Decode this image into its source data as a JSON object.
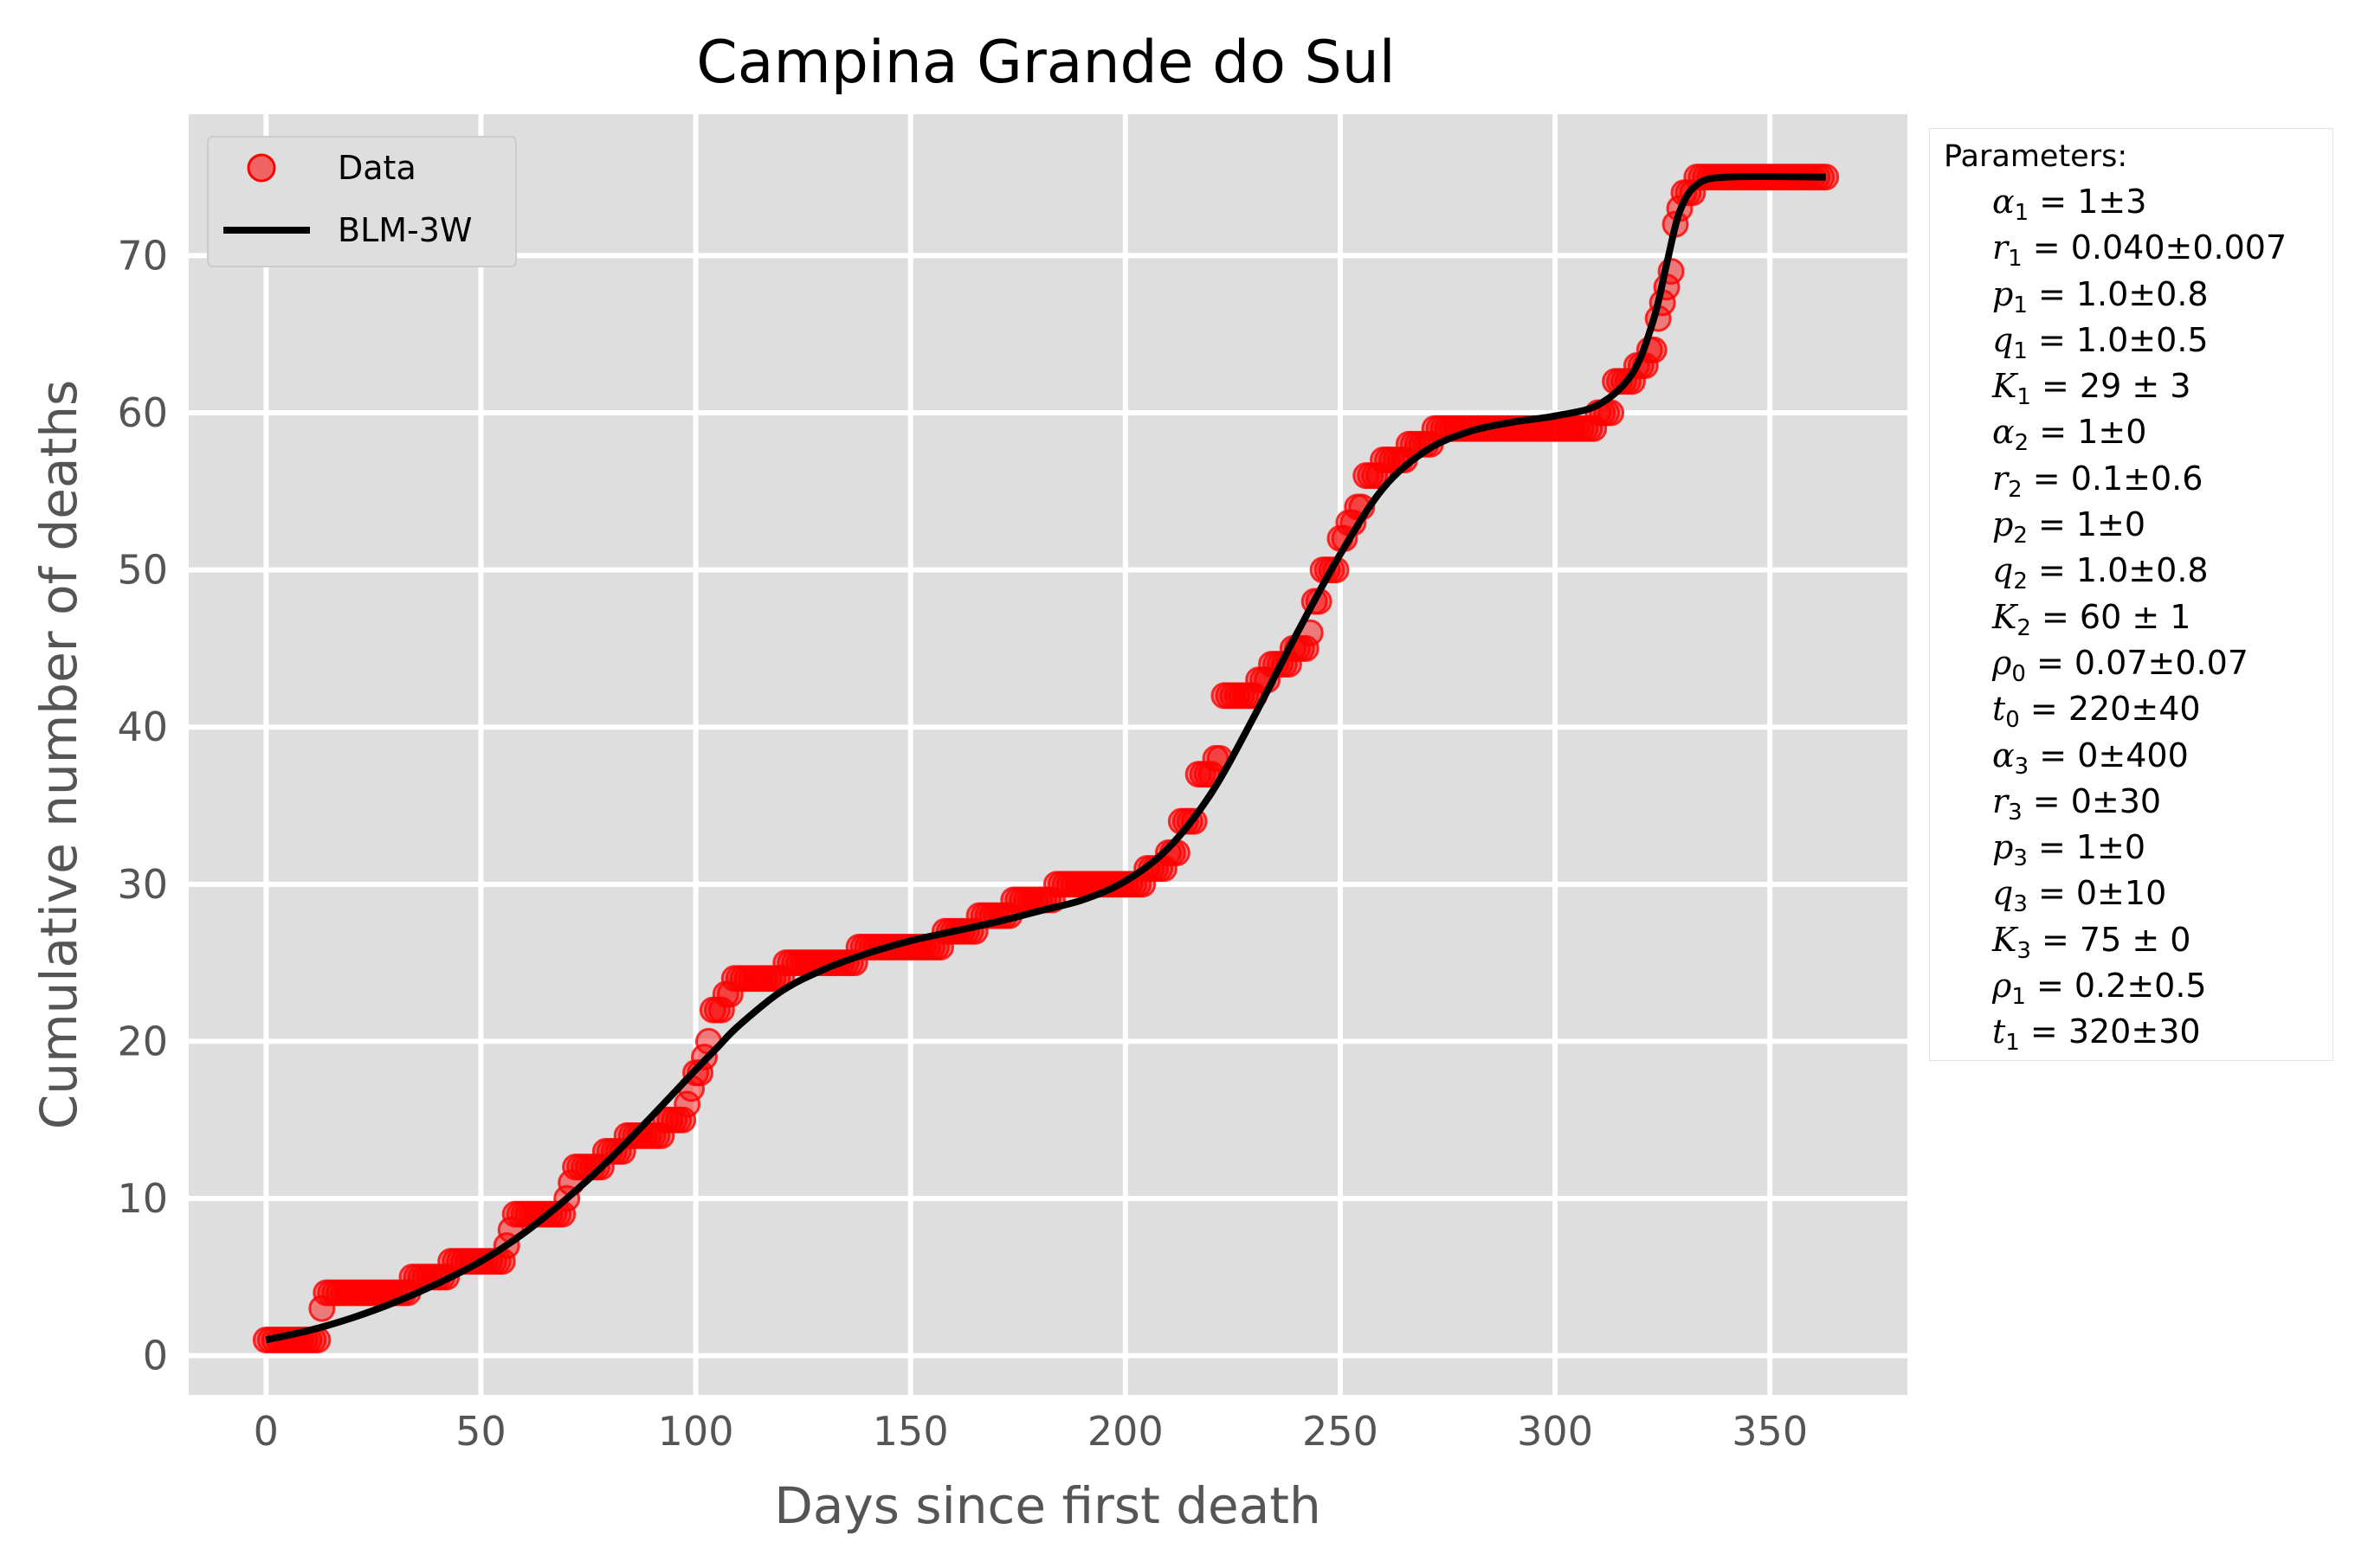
{
  "chart_data": {
    "type": "scatter",
    "title": "Campina Grande do Sul",
    "xlabel": "Days since first death",
    "ylabel": "Cumulative number of deaths",
    "xlim": [
      -18,
      382
    ],
    "ylim": [
      -2.5,
      79
    ],
    "x_ticks": [
      0,
      50,
      100,
      150,
      200,
      250,
      300,
      350
    ],
    "y_ticks": [
      0,
      10,
      20,
      30,
      40,
      50,
      60,
      70
    ],
    "grid": true,
    "legend_position": "top-left",
    "colors": {
      "data": "#ff0000",
      "fit": "#000000",
      "axes_bg": "#dedede",
      "grid": "#ffffff"
    },
    "series": [
      {
        "name": "Data",
        "kind": "scatter",
        "points": [
          [
            0,
            1
          ],
          [
            12,
            1
          ],
          [
            13,
            3
          ],
          [
            14,
            4
          ],
          [
            33,
            4
          ],
          [
            34,
            5
          ],
          [
            42,
            5
          ],
          [
            43,
            6
          ],
          [
            55,
            6
          ],
          [
            56,
            7
          ],
          [
            57,
            8
          ],
          [
            58,
            9
          ],
          [
            69,
            9
          ],
          [
            70,
            10
          ],
          [
            71,
            11
          ],
          [
            72,
            12
          ],
          [
            78,
            12
          ],
          [
            79,
            13
          ],
          [
            83,
            13
          ],
          [
            84,
            14
          ],
          [
            92,
            14
          ],
          [
            93,
            15
          ],
          [
            97,
            15
          ],
          [
            98,
            16
          ],
          [
            99,
            17
          ],
          [
            100,
            18
          ],
          [
            101,
            18
          ],
          [
            102,
            19
          ],
          [
            103,
            20
          ],
          [
            104,
            22
          ],
          [
            107,
            23
          ],
          [
            109,
            24
          ],
          [
            120,
            24
          ],
          [
            121,
            25
          ],
          [
            137,
            25
          ],
          [
            138,
            26
          ],
          [
            157,
            26
          ],
          [
            158,
            27
          ],
          [
            165,
            27
          ],
          [
            166,
            28
          ],
          [
            173,
            28
          ],
          [
            174,
            29
          ],
          [
            183,
            29
          ],
          [
            184,
            30
          ],
          [
            203,
            30
          ],
          [
            205,
            31
          ],
          [
            210,
            32
          ],
          [
            213,
            34
          ],
          [
            215,
            34
          ],
          [
            217,
            37
          ],
          [
            219,
            37
          ],
          [
            221,
            38
          ],
          [
            223,
            42
          ],
          [
            227,
            42
          ],
          [
            231,
            43
          ],
          [
            234,
            44
          ],
          [
            238,
            44
          ],
          [
            239,
            45
          ],
          [
            241,
            45
          ],
          [
            243,
            46
          ],
          [
            244,
            48
          ],
          [
            246,
            50
          ],
          [
            248,
            50
          ],
          [
            250,
            52
          ],
          [
            252,
            53
          ],
          [
            254,
            54
          ],
          [
            256,
            56
          ],
          [
            258,
            56
          ],
          [
            260,
            57
          ],
          [
            264,
            57
          ],
          [
            266,
            58
          ],
          [
            271,
            58
          ],
          [
            272,
            59
          ],
          [
            309,
            59
          ],
          [
            310,
            60
          ],
          [
            313,
            60
          ],
          [
            314,
            62
          ],
          [
            317,
            62
          ],
          [
            319,
            63
          ],
          [
            322,
            64
          ],
          [
            324,
            66
          ],
          [
            325,
            67
          ],
          [
            326,
            68
          ],
          [
            327,
            69
          ],
          [
            328,
            72
          ],
          [
            329,
            73
          ],
          [
            330,
            74
          ],
          [
            331,
            74
          ],
          [
            333,
            75
          ],
          [
            363,
            75
          ]
        ]
      },
      {
        "name": "BLM-3W",
        "kind": "line",
        "points": [
          [
            0,
            1.0
          ],
          [
            10,
            1.6
          ],
          [
            20,
            2.4
          ],
          [
            30,
            3.4
          ],
          [
            40,
            4.6
          ],
          [
            50,
            6.0
          ],
          [
            60,
            7.8
          ],
          [
            70,
            10.0
          ],
          [
            80,
            12.5
          ],
          [
            90,
            15.3
          ],
          [
            100,
            18.2
          ],
          [
            105,
            19.6
          ],
          [
            110,
            21.0
          ],
          [
            120,
            23.2
          ],
          [
            130,
            24.6
          ],
          [
            140,
            25.6
          ],
          [
            150,
            26.4
          ],
          [
            160,
            27.0
          ],
          [
            170,
            27.6
          ],
          [
            180,
            28.3
          ],
          [
            190,
            29.0
          ],
          [
            200,
            30.2
          ],
          [
            210,
            32.3
          ],
          [
            220,
            35.8
          ],
          [
            230,
            40.7
          ],
          [
            240,
            46.0
          ],
          [
            250,
            51.0
          ],
          [
            260,
            55.2
          ],
          [
            270,
            57.6
          ],
          [
            280,
            58.8
          ],
          [
            290,
            59.4
          ],
          [
            300,
            59.8
          ],
          [
            310,
            60.5
          ],
          [
            318,
            62.5
          ],
          [
            323,
            66.0
          ],
          [
            326,
            69.5
          ],
          [
            329,
            72.8
          ],
          [
            333,
            74.5
          ],
          [
            340,
            75.0
          ],
          [
            363,
            75.0
          ]
        ]
      }
    ],
    "legend": [
      "Data",
      "BLM-3W"
    ],
    "parameters_title": "Parameters:",
    "parameters": [
      {
        "symbol": "α",
        "sub": "1",
        "eq": " = 1±3"
      },
      {
        "symbol": "r",
        "sub": "1",
        "eq": " = 0.040±0.007"
      },
      {
        "symbol": "p",
        "sub": "1",
        "eq": " = 1.0±0.8"
      },
      {
        "symbol": "q",
        "sub": "1",
        "eq": " = 1.0±0.5"
      },
      {
        "symbol": "K",
        "sub": "1",
        "eq": " = 29 ± 3"
      },
      {
        "symbol": "α",
        "sub": "2",
        "eq": " = 1±0"
      },
      {
        "symbol": "r",
        "sub": "2",
        "eq": " = 0.1±0.6"
      },
      {
        "symbol": "p",
        "sub": "2",
        "eq": " = 1±0"
      },
      {
        "symbol": "q",
        "sub": "2",
        "eq": " = 1.0±0.8"
      },
      {
        "symbol": "K",
        "sub": "2",
        "eq": " = 60 ± 1"
      },
      {
        "symbol": "ρ",
        "sub": "0",
        "eq": " = 0.07±0.07"
      },
      {
        "symbol": "t",
        "sub": "0",
        "eq": " = 220±40"
      },
      {
        "symbol": "α",
        "sub": "3",
        "eq": " = 0±400"
      },
      {
        "symbol": "r",
        "sub": "3",
        "eq": " = 0±30"
      },
      {
        "symbol": "p",
        "sub": "3",
        "eq": " = 1±0"
      },
      {
        "symbol": "q",
        "sub": "3",
        "eq": " = 0±10"
      },
      {
        "symbol": "K",
        "sub": "3",
        "eq": " = 75 ± 0"
      },
      {
        "symbol": "ρ",
        "sub": "1",
        "eq": " = 0.2±0.5"
      },
      {
        "symbol": "t",
        "sub": "1",
        "eq": " = 320±30"
      }
    ]
  }
}
